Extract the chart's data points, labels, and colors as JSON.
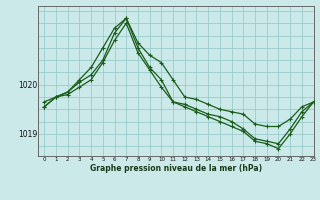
{
  "title": "Graphe pression niveau de la mer (hPa)",
  "background_color": "#cbe9e9",
  "grid_color": "#99cccc",
  "line_color": "#1a5c1a",
  "xlim": [
    -0.5,
    23
  ],
  "ylim": [
    1018.55,
    1021.6
  ],
  "yticks": [
    1019,
    1020
  ],
  "xticks": [
    0,
    1,
    2,
    3,
    4,
    5,
    6,
    7,
    8,
    9,
    10,
    11,
    12,
    13,
    14,
    15,
    16,
    17,
    18,
    19,
    20,
    21,
    22,
    23
  ],
  "hours": [
    0,
    1,
    2,
    3,
    4,
    5,
    6,
    7,
    8,
    9,
    10,
    11,
    12,
    13,
    14,
    15,
    16,
    17,
    18,
    19,
    20,
    21,
    22,
    23
  ],
  "line1": [
    1019.65,
    1019.75,
    1019.85,
    1020.05,
    1020.2,
    1020.5,
    1021.05,
    1021.35,
    1020.85,
    1020.6,
    1020.45,
    1020.1,
    1019.75,
    1019.7,
    1019.6,
    1019.5,
    1019.45,
    1019.4,
    1019.2,
    1019.15,
    1019.15,
    1019.3,
    1019.55,
    1019.65
  ],
  "line2": [
    1019.55,
    1019.75,
    1019.85,
    1020.1,
    1020.35,
    1020.75,
    1021.15,
    1021.35,
    1020.75,
    1020.35,
    1020.1,
    1019.65,
    1019.6,
    1019.5,
    1019.4,
    1019.35,
    1019.25,
    1019.1,
    1018.9,
    1018.85,
    1018.8,
    1019.1,
    1019.45,
    1019.65
  ],
  "line3": [
    1019.55,
    1019.75,
    1019.8,
    1019.95,
    1020.1,
    1020.45,
    1020.9,
    1021.25,
    1020.65,
    1020.3,
    1019.95,
    1019.65,
    1019.55,
    1019.45,
    1019.35,
    1019.25,
    1019.15,
    1019.05,
    1018.85,
    1018.8,
    1018.7,
    1019.0,
    1019.35,
    1019.65
  ]
}
